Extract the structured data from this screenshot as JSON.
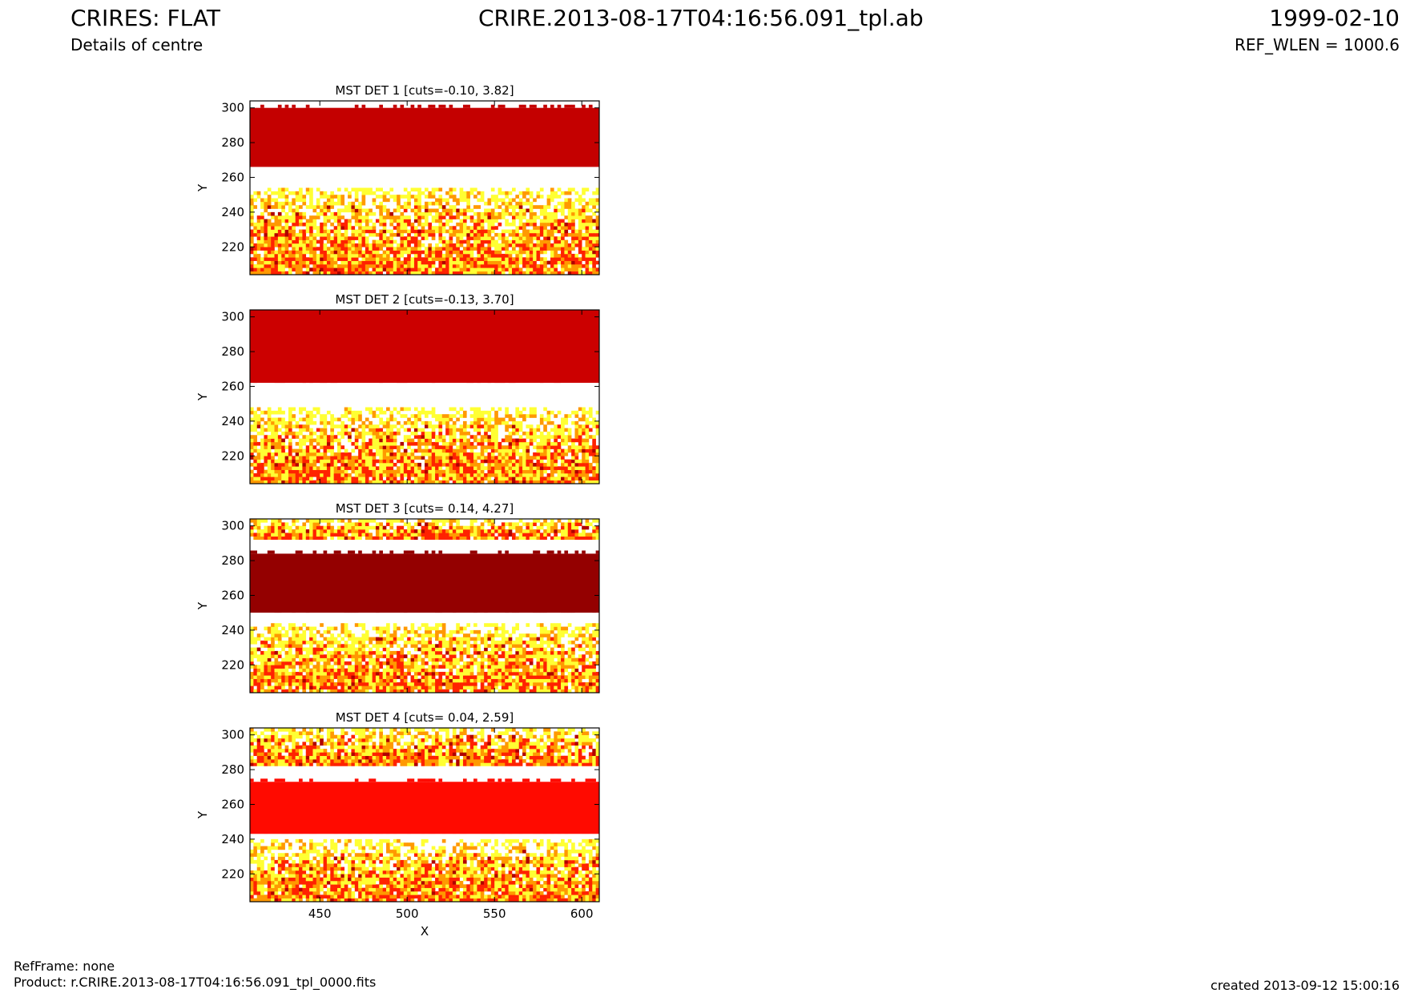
{
  "header": {
    "title_left": "CRIRES: FLAT",
    "subtitle_left": "Details of centre",
    "title_center": "CRIRE.2013-08-17T04:16:56.091_tpl.ab",
    "title_right": "1999-02-10",
    "subtitle_right": "REF_WLEN = 1000.6"
  },
  "footer": {
    "refframe": "RefFrame: none",
    "product": "Product: r.CRIRE.2013-08-17T04:16:56.091_tpl_0000.fits",
    "created": "created 2013-09-12 15:00:16"
  },
  "colors": {
    "white": "#ffffff",
    "yellow": "#ffff33",
    "orange": "#ff9900",
    "red": "#ff2200",
    "band_det1": "#c40000",
    "band_det2": "#cc0000",
    "band_det3": "#940000",
    "band_det4": "#ff0a00"
  },
  "chart_data": [
    {
      "type": "heatmap",
      "title": "MST DET 1 [cuts=-0.10, 3.82]",
      "xlabel": "",
      "ylabel": "Y",
      "xlim": [
        410,
        610
      ],
      "ylim": [
        204,
        304
      ],
      "xticks": [],
      "yticks": [
        220,
        240,
        260,
        280,
        300
      ],
      "cuts": [
        -0.1,
        3.82
      ],
      "bands": [
        {
          "level": "saturated",
          "color": "#c40000",
          "y_from": 266,
          "y_to": 300
        },
        {
          "level": "high",
          "color": "#ffffff",
          "y_from": 254,
          "y_to": 266
        },
        {
          "level": "noise",
          "y_from": 204,
          "y_to": 254
        }
      ]
    },
    {
      "type": "heatmap",
      "title": "MST DET 2 [cuts=-0.13, 3.70]",
      "xlabel": "",
      "ylabel": "Y",
      "xlim": [
        410,
        610
      ],
      "ylim": [
        204,
        304
      ],
      "xticks": [],
      "yticks": [
        220,
        240,
        260,
        280,
        300
      ],
      "cuts": [
        -0.13,
        3.7
      ],
      "bands": [
        {
          "level": "saturated",
          "color": "#cc0000",
          "y_from": 262,
          "y_to": 304
        },
        {
          "level": "high",
          "color": "#ffffff",
          "y_from": 248,
          "y_to": 262
        },
        {
          "level": "noise",
          "y_from": 204,
          "y_to": 248
        }
      ]
    },
    {
      "type": "heatmap",
      "title": "MST DET 3 [cuts= 0.14, 4.27]",
      "xlabel": "",
      "ylabel": "Y",
      "xlim": [
        410,
        610
      ],
      "ylim": [
        204,
        304
      ],
      "xticks": [],
      "yticks": [
        220,
        240,
        260,
        280,
        300
      ],
      "cuts": [
        0.14,
        4.27
      ],
      "bands": [
        {
          "level": "noise",
          "y_from": 292,
          "y_to": 304
        },
        {
          "level": "high",
          "color": "#ffffff",
          "y_from": 284,
          "y_to": 292
        },
        {
          "level": "saturated",
          "color": "#940000",
          "y_from": 250,
          "y_to": 284
        },
        {
          "level": "high",
          "color": "#ffffff",
          "y_from": 244,
          "y_to": 250
        },
        {
          "level": "noise",
          "y_from": 204,
          "y_to": 244
        }
      ]
    },
    {
      "type": "heatmap",
      "title": "MST DET 4 [cuts= 0.04, 2.59]",
      "xlabel": "X",
      "ylabel": "Y",
      "xlim": [
        410,
        610
      ],
      "ylim": [
        204,
        304
      ],
      "xticks": [
        450,
        500,
        550,
        600
      ],
      "yticks": [
        220,
        240,
        260,
        280,
        300
      ],
      "cuts": [
        0.04,
        2.59
      ],
      "bands": [
        {
          "level": "noise",
          "y_from": 282,
          "y_to": 304
        },
        {
          "level": "high",
          "color": "#ffffff",
          "y_from": 274,
          "y_to": 282
        },
        {
          "level": "saturated",
          "color": "#ff0a00",
          "y_from": 243,
          "y_to": 273
        },
        {
          "level": "high",
          "color": "#ffffff",
          "y_from": 240,
          "y_to": 243
        },
        {
          "level": "noise",
          "y_from": 204,
          "y_to": 240
        }
      ]
    }
  ]
}
